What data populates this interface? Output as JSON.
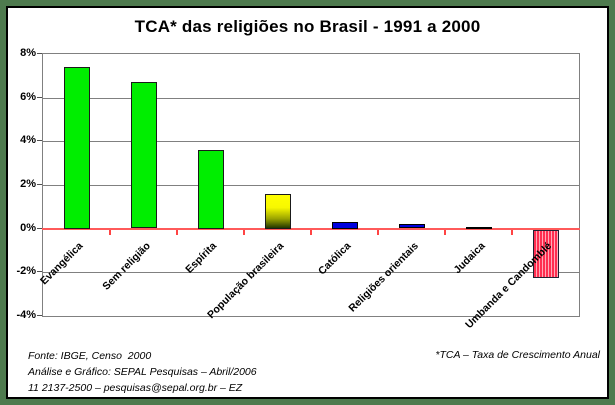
{
  "window": {
    "border_color": "#4e7a4e"
  },
  "chart_data": {
    "type": "bar",
    "title": "TCA* das religiões no Brasil - 1991 a 2000",
    "categories": [
      "Evangélica",
      "Sem religião",
      "Espírita",
      "População brasileira",
      "Católica",
      "Religiões orientais",
      "Judaica",
      "Umbanda e Candomblé"
    ],
    "values": [
      7.4,
      6.7,
      3.6,
      1.6,
      0.3,
      0.2,
      0.05,
      -2.2
    ],
    "bar_styles": [
      "green",
      "green",
      "green",
      "yellow-gradient",
      "blue",
      "blue",
      "dark-red",
      "red-striped"
    ],
    "ylim": [
      -4,
      8
    ],
    "yticks": [
      8,
      6,
      4,
      2,
      0,
      -2,
      -4
    ],
    "ytick_labels": [
      "8%",
      "6%",
      "4%",
      "2%",
      "0%",
      "-2%",
      "-4%"
    ],
    "xlabel": "",
    "ylabel": "",
    "grid": true,
    "legend_position": "none",
    "colors": {
      "green_bar": "#00ee00",
      "yellow_bar_top": "#ffff00",
      "yellow_bar_bottom": "#233600",
      "blue_bar": "#0000dd",
      "dark_red_bar": "#2a1010",
      "striped_bar_red": "#ff2e50",
      "striped_bar_pink": "#ffaab8",
      "zero_line": "#ff5a5a",
      "gridline": "#808080",
      "outer_border": "#4e7a4e"
    }
  },
  "footer": {
    "left_lines": [
      "Fonte: IBGE, Censo  2000",
      "Análise e Gráfico: SEPAL Pesquisas – Abril/2006",
      "11 2137-2500 – pesquisas@sepal.org.br – EZ"
    ],
    "note": "*TCA – Taxa de Crescimento Anual"
  }
}
